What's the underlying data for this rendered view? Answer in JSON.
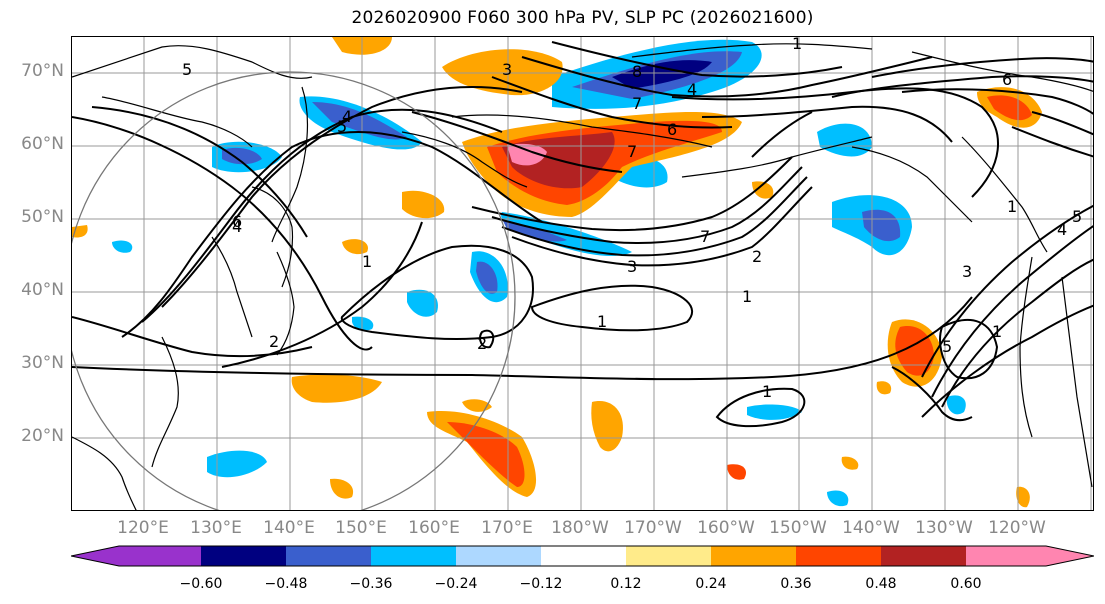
{
  "title": "2026020900 F060 300 hPa PV, SLP PC (2026021600)",
  "map": {
    "lat_labels": [
      "70°N",
      "60°N",
      "50°N",
      "40°N",
      "30°N",
      "20°N"
    ],
    "lon_labels": [
      "120°E",
      "130°E",
      "140°E",
      "150°E",
      "160°E",
      "170°E",
      "180°W",
      "170°W",
      "160°W",
      "150°W",
      "140°W",
      "130°W",
      "120°W"
    ],
    "contour_labels": [
      "1",
      "8",
      "4",
      "7",
      "6",
      "5",
      "5",
      "3",
      "4",
      "4",
      "7",
      "1",
      "6",
      "2",
      "2",
      "3",
      "1",
      "1",
      "7",
      "2",
      "1",
      "6",
      "5",
      "4",
      "3",
      "1",
      "1",
      "5"
    ]
  },
  "colorbar": {
    "ticks": [
      "−0.60",
      "−0.48",
      "−0.36",
      "−0.24",
      "−0.12",
      "0.12",
      "0.24",
      "0.36",
      "0.48",
      "0.60"
    ],
    "colors": [
      "#9932cc",
      "#000080",
      "#3a5fcd",
      "#00bfff",
      "#add8ff",
      "#ffffff",
      "#ffeb8a",
      "#ffa500",
      "#ff4500",
      "#b22222",
      "#ff85b0",
      "#ff85b0"
    ]
  },
  "icons": {
    "colorbar_left_arrow": "triangle-left",
    "colorbar_right_arrow": "triangle-right"
  }
}
